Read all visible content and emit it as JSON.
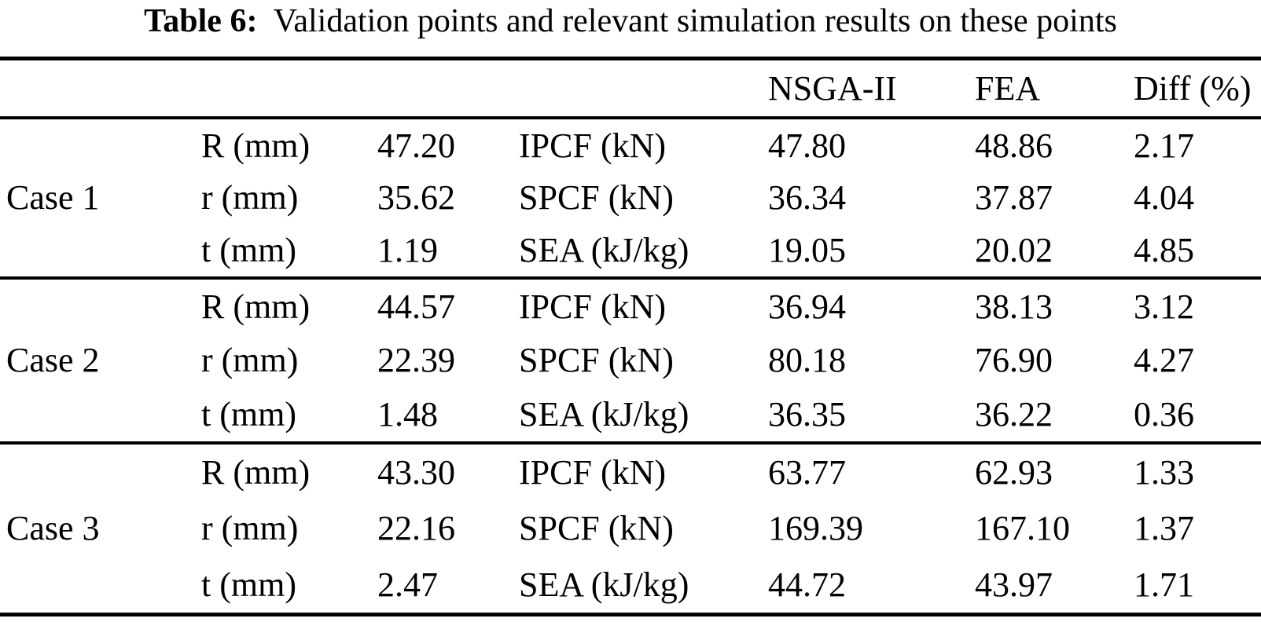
{
  "caption": {
    "label": "Table 6:",
    "text": "  Validation points and relevant simulation results on these points"
  },
  "table": {
    "header": {
      "nsga2": "NSGA-II",
      "fea": "FEA",
      "diff": "Diff (%)"
    },
    "cases": [
      {
        "label": "Case 1",
        "rows": [
          {
            "var": "R (mm)",
            "var_value": "47.20",
            "metric": "IPCF (kN)",
            "nsga2": "47.80",
            "fea": "48.86",
            "diff": "2.17"
          },
          {
            "var": "r (mm)",
            "var_value": "35.62",
            "metric": "SPCF (kN)",
            "nsga2": "36.34",
            "fea": "37.87",
            "diff": "4.04"
          },
          {
            "var": "t (mm)",
            "var_value": "1.19",
            "metric": "SEA (kJ/kg)",
            "nsga2": "19.05",
            "fea": "20.02",
            "diff": "4.85"
          }
        ]
      },
      {
        "label": "Case 2",
        "rows": [
          {
            "var": "R (mm)",
            "var_value": "44.57",
            "metric": "IPCF (kN)",
            "nsga2": "36.94",
            "fea": "38.13",
            "diff": "3.12"
          },
          {
            "var": "r (mm)",
            "var_value": "22.39",
            "metric": "SPCF (kN)",
            "nsga2": "80.18",
            "fea": "76.90",
            "diff": "4.27"
          },
          {
            "var": "t (mm)",
            "var_value": "1.48",
            "metric": "SEA (kJ/kg)",
            "nsga2": "36.35",
            "fea": "36.22",
            "diff": "0.36"
          }
        ]
      },
      {
        "label": "Case 3",
        "rows": [
          {
            "var": "R (mm)",
            "var_value": "43.30",
            "metric": "IPCF (kN)",
            "nsga2": "63.77",
            "fea": "62.93",
            "diff": "1.33"
          },
          {
            "var": "r (mm)",
            "var_value": "22.16",
            "metric": "SPCF (kN)",
            "nsga2": "169.39",
            "fea": "167.10",
            "diff": "1.37"
          },
          {
            "var": "t (mm)",
            "var_value": "2.47",
            "metric": "SEA (kJ/kg)",
            "nsga2": "44.72",
            "fea": "43.97",
            "diff": "1.71"
          }
        ]
      }
    ]
  }
}
